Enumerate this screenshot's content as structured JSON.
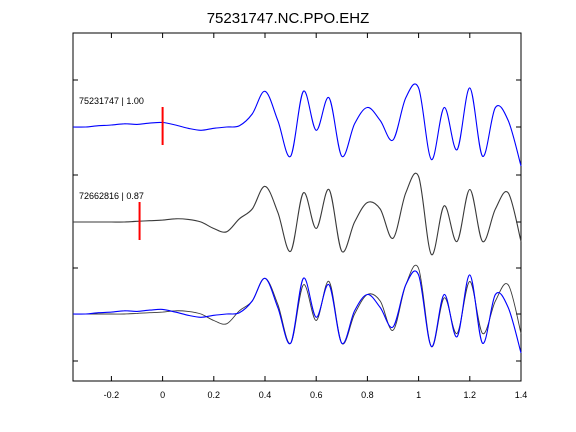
{
  "chart_data": {
    "type": "line",
    "title": "75231747.NC.PPO.EHZ",
    "xlabel": "",
    "ylabel": "",
    "xlim": [
      -0.35,
      1.4
    ],
    "x_ticks": [
      -0.2,
      0,
      0.2,
      0.4,
      0.6,
      0.8,
      1,
      1.2,
      1.4
    ],
    "x_tick_labels": [
      "-0.2",
      "0",
      "0.2",
      "0.4",
      "0.6",
      "0.8",
      "1",
      "1.2",
      "1.4"
    ],
    "grid": false,
    "colors": {
      "blue": "#0000ff",
      "gray": "#3a3a3a",
      "pick": "#ff0000",
      "axes": "#000000"
    },
    "traces": [
      {
        "label": "75231747 | 1.00",
        "color": "#0000ff",
        "pick_x": 0.0,
        "x": [
          -0.35,
          -0.3,
          -0.25,
          -0.2,
          -0.15,
          -0.1,
          -0.05,
          0,
          0.05,
          0.1,
          0.15,
          0.2,
          0.25,
          0.3,
          0.35,
          0.4,
          0.45,
          0.5,
          0.55,
          0.6,
          0.65,
          0.7,
          0.75,
          0.8,
          0.85,
          0.9,
          0.95,
          1.0,
          1.05,
          1.1,
          1.15,
          1.2,
          1.25,
          1.3,
          1.35,
          1.4
        ],
        "y": [
          0.0,
          0.0,
          0.02,
          0.03,
          0.05,
          0.04,
          0.06,
          0.07,
          0.03,
          -0.02,
          -0.05,
          -0.02,
          0.0,
          0.02,
          0.2,
          0.55,
          0.1,
          -0.45,
          0.55,
          -0.05,
          0.45,
          -0.45,
          0.05,
          0.3,
          0.1,
          -0.2,
          0.45,
          0.6,
          -0.5,
          0.3,
          -0.35,
          0.6,
          -0.45,
          0.3,
          0.1,
          -0.6
        ]
      },
      {
        "label": "72662816 | 0.87",
        "color": "#3a3a3a",
        "pick_x": -0.09,
        "x": [
          -0.35,
          -0.3,
          -0.25,
          -0.2,
          -0.15,
          -0.1,
          -0.05,
          0,
          0.05,
          0.1,
          0.15,
          0.2,
          0.25,
          0.3,
          0.35,
          0.4,
          0.45,
          0.5,
          0.55,
          0.6,
          0.65,
          0.7,
          0.75,
          0.8,
          0.85,
          0.9,
          0.95,
          1.0,
          1.05,
          1.1,
          1.15,
          1.2,
          1.25,
          1.3,
          1.35,
          1.4
        ],
        "y": [
          0.0,
          0.0,
          0.0,
          0.0,
          0.0,
          0.01,
          0.02,
          0.03,
          0.05,
          0.04,
          0.0,
          -0.1,
          -0.15,
          0.05,
          0.2,
          0.55,
          0.15,
          -0.45,
          0.45,
          -0.1,
          0.5,
          -0.45,
          0.0,
          0.3,
          0.2,
          -0.25,
          0.45,
          0.7,
          -0.5,
          0.25,
          -0.3,
          0.5,
          -0.3,
          0.2,
          0.45,
          -0.3
        ]
      },
      {
        "label": "",
        "color": "#0000ff",
        "overlay_color": "#3a3a3a",
        "x": [
          -0.35,
          -0.3,
          -0.25,
          -0.2,
          -0.15,
          -0.1,
          -0.05,
          0,
          0.05,
          0.1,
          0.15,
          0.2,
          0.25,
          0.3,
          0.35,
          0.4,
          0.45,
          0.5,
          0.55,
          0.6,
          0.65,
          0.7,
          0.75,
          0.8,
          0.85,
          0.9,
          0.95,
          1.0,
          1.05,
          1.1,
          1.15,
          1.2,
          1.25,
          1.3,
          1.35,
          1.4
        ],
        "y": [
          0.0,
          0.0,
          0.02,
          0.03,
          0.05,
          0.04,
          0.06,
          0.07,
          0.03,
          -0.02,
          -0.05,
          -0.02,
          0.0,
          0.02,
          0.2,
          0.55,
          0.1,
          -0.45,
          0.55,
          -0.05,
          0.45,
          -0.45,
          0.05,
          0.3,
          0.1,
          -0.2,
          0.45,
          0.6,
          -0.5,
          0.3,
          -0.35,
          0.6,
          -0.45,
          0.3,
          0.1,
          -0.6
        ],
        "overlay_y": [
          0.0,
          0.0,
          0.0,
          0.0,
          0.0,
          0.01,
          0.02,
          0.03,
          0.05,
          0.04,
          0.0,
          -0.1,
          -0.15,
          0.05,
          0.2,
          0.55,
          0.15,
          -0.45,
          0.45,
          -0.1,
          0.5,
          -0.45,
          0.0,
          0.3,
          0.2,
          -0.25,
          0.45,
          0.7,
          -0.5,
          0.25,
          -0.3,
          0.5,
          -0.3,
          0.2,
          0.45,
          -0.3
        ]
      }
    ]
  }
}
